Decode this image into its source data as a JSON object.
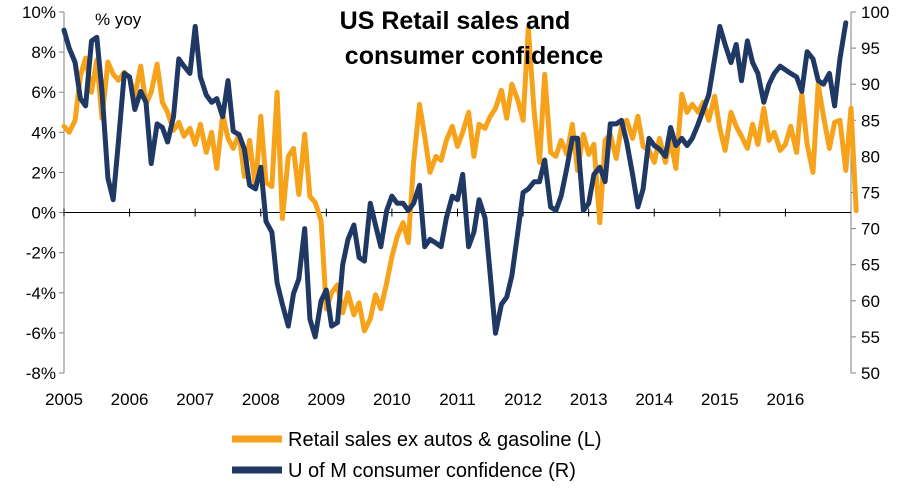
{
  "chart_data": {
    "type": "line",
    "title_lines": [
      "US Retail sales and",
      "consumer confidence"
    ],
    "left_unit_label": "% yoy",
    "x_ticks": [
      "2005",
      "2006",
      "2007",
      "2008",
      "2009",
      "2010",
      "2011",
      "2012",
      "2013",
      "2014",
      "2015",
      "2016"
    ],
    "y_left": {
      "min": -8,
      "max": 10,
      "ticks": [
        "-8%",
        "-6%",
        "-4%",
        "-2%",
        "0%",
        "2%",
        "4%",
        "6%",
        "8%",
        "10%"
      ]
    },
    "y_right": {
      "min": 50,
      "max": 100,
      "ticks": [
        "50",
        "55",
        "60",
        "65",
        "70",
        "75",
        "80",
        "85",
        "90",
        "95",
        "100"
      ]
    },
    "x_range": [
      2005.0,
      2017.0
    ],
    "series": [
      {
        "name": "Retail sales ex autos & gasoline (L)",
        "axis": "left",
        "color": "#F7A21B",
        "points": [
          [
            2005.0,
            4.3
          ],
          [
            2005.08,
            4.0
          ],
          [
            2005.17,
            4.6
          ],
          [
            2005.25,
            6.8
          ],
          [
            2005.33,
            7.7
          ],
          [
            2005.42,
            6.0
          ],
          [
            2005.5,
            7.6
          ],
          [
            2005.58,
            4.7
          ],
          [
            2005.67,
            7.5
          ],
          [
            2005.75,
            6.9
          ],
          [
            2005.83,
            6.6
          ],
          [
            2005.92,
            7.0
          ],
          [
            2006.0,
            6.7
          ],
          [
            2006.08,
            5.8
          ],
          [
            2006.17,
            7.3
          ],
          [
            2006.25,
            5.4
          ],
          [
            2006.33,
            6.0
          ],
          [
            2006.42,
            7.4
          ],
          [
            2006.5,
            5.5
          ],
          [
            2006.58,
            5.0
          ],
          [
            2006.67,
            4.1
          ],
          [
            2006.75,
            4.5
          ],
          [
            2006.83,
            3.8
          ],
          [
            2006.92,
            4.2
          ],
          [
            2007.0,
            3.4
          ],
          [
            2007.08,
            4.4
          ],
          [
            2007.17,
            3.0
          ],
          [
            2007.25,
            4.0
          ],
          [
            2007.33,
            2.2
          ],
          [
            2007.42,
            4.9
          ],
          [
            2007.5,
            3.7
          ],
          [
            2007.58,
            3.2
          ],
          [
            2007.67,
            3.9
          ],
          [
            2007.75,
            1.8
          ],
          [
            2007.83,
            3.6
          ],
          [
            2007.92,
            1.2
          ],
          [
            2008.0,
            4.8
          ],
          [
            2008.08,
            1.5
          ],
          [
            2008.17,
            1.3
          ],
          [
            2008.25,
            6.0
          ],
          [
            2008.33,
            -0.3
          ],
          [
            2008.42,
            2.8
          ],
          [
            2008.5,
            3.2
          ],
          [
            2008.58,
            0.9
          ],
          [
            2008.67,
            3.9
          ],
          [
            2008.75,
            0.8
          ],
          [
            2008.83,
            0.5
          ],
          [
            2008.92,
            -0.4
          ],
          [
            2009.0,
            -4.8
          ],
          [
            2009.08,
            -4.0
          ],
          [
            2009.17,
            -3.6
          ],
          [
            2009.25,
            -5.0
          ],
          [
            2009.33,
            -4.0
          ],
          [
            2009.42,
            -5.1
          ],
          [
            2009.5,
            -4.5
          ],
          [
            2009.58,
            -5.9
          ],
          [
            2009.67,
            -5.3
          ],
          [
            2009.75,
            -4.1
          ],
          [
            2009.83,
            -4.8
          ],
          [
            2009.92,
            -3.5
          ],
          [
            2010.0,
            -2.2
          ],
          [
            2010.08,
            -1.2
          ],
          [
            2010.17,
            -0.5
          ],
          [
            2010.25,
            -1.5
          ],
          [
            2010.33,
            2.5
          ],
          [
            2010.42,
            5.4
          ],
          [
            2010.5,
            3.8
          ],
          [
            2010.58,
            2.0
          ],
          [
            2010.67,
            2.8
          ],
          [
            2010.75,
            2.6
          ],
          [
            2010.83,
            3.6
          ],
          [
            2010.92,
            4.3
          ],
          [
            2011.0,
            3.3
          ],
          [
            2011.08,
            4.0
          ],
          [
            2011.17,
            5.0
          ],
          [
            2011.25,
            2.8
          ],
          [
            2011.33,
            4.4
          ],
          [
            2011.42,
            4.2
          ],
          [
            2011.5,
            4.8
          ],
          [
            2011.58,
            5.2
          ],
          [
            2011.67,
            6.1
          ],
          [
            2011.75,
            4.7
          ],
          [
            2011.83,
            6.4
          ],
          [
            2011.92,
            5.6
          ],
          [
            2012.0,
            4.6
          ],
          [
            2012.08,
            9.2
          ],
          [
            2012.17,
            5.0
          ],
          [
            2012.25,
            2.5
          ],
          [
            2012.33,
            6.9
          ],
          [
            2012.42,
            3.0
          ],
          [
            2012.5,
            2.8
          ],
          [
            2012.58,
            3.6
          ],
          [
            2012.67,
            2.9
          ],
          [
            2012.75,
            4.4
          ],
          [
            2012.83,
            2.1
          ],
          [
            2012.92,
            3.9
          ],
          [
            2013.0,
            2.9
          ],
          [
            2013.08,
            3.4
          ],
          [
            2013.17,
            -0.5
          ],
          [
            2013.25,
            3.6
          ],
          [
            2013.33,
            3.9
          ],
          [
            2013.42,
            2.7
          ],
          [
            2013.5,
            4.3
          ],
          [
            2013.58,
            4.6
          ],
          [
            2013.67,
            3.7
          ],
          [
            2013.75,
            4.8
          ],
          [
            2013.83,
            3.3
          ],
          [
            2013.92,
            3.1
          ],
          [
            2014.0,
            2.5
          ],
          [
            2014.08,
            3.7
          ],
          [
            2014.17,
            2.5
          ],
          [
            2014.25,
            3.6
          ],
          [
            2014.33,
            2.2
          ],
          [
            2014.42,
            5.9
          ],
          [
            2014.5,
            5.0
          ],
          [
            2014.58,
            5.4
          ],
          [
            2014.67,
            5.0
          ],
          [
            2014.75,
            5.5
          ],
          [
            2014.83,
            4.6
          ],
          [
            2014.92,
            5.8
          ],
          [
            2015.0,
            4.2
          ],
          [
            2015.08,
            3.1
          ],
          [
            2015.17,
            5.0
          ],
          [
            2015.25,
            4.3
          ],
          [
            2015.33,
            3.8
          ],
          [
            2015.42,
            3.2
          ],
          [
            2015.5,
            4.4
          ],
          [
            2015.58,
            3.4
          ],
          [
            2015.67,
            5.2
          ],
          [
            2015.75,
            3.6
          ],
          [
            2015.83,
            4.0
          ],
          [
            2015.92,
            3.1
          ],
          [
            2016.0,
            3.4
          ],
          [
            2016.08,
            4.3
          ],
          [
            2016.17,
            3.0
          ],
          [
            2016.25,
            5.9
          ],
          [
            2016.33,
            3.4
          ],
          [
            2016.42,
            2.0
          ],
          [
            2016.5,
            6.4
          ],
          [
            2016.58,
            4.8
          ],
          [
            2016.67,
            3.2
          ],
          [
            2016.75,
            4.5
          ],
          [
            2016.83,
            4.6
          ],
          [
            2016.92,
            2.1
          ],
          [
            2017.0,
            5.2
          ],
          [
            2017.08,
            0.1
          ]
        ]
      },
      {
        "name": "U of M consumer confidence (R)",
        "axis": "right",
        "color": "#1F3864",
        "points": [
          [
            2005.0,
            97.5
          ],
          [
            2005.08,
            95.0
          ],
          [
            2005.17,
            93.0
          ],
          [
            2005.25,
            88.0
          ],
          [
            2005.33,
            87.0
          ],
          [
            2005.42,
            96.0
          ],
          [
            2005.5,
            96.5
          ],
          [
            2005.58,
            89.0
          ],
          [
            2005.67,
            77.0
          ],
          [
            2005.75,
            74.0
          ],
          [
            2005.83,
            82.0
          ],
          [
            2005.92,
            91.5
          ],
          [
            2006.0,
            91.0
          ],
          [
            2006.08,
            86.5
          ],
          [
            2006.17,
            89.0
          ],
          [
            2006.25,
            87.5
          ],
          [
            2006.33,
            79.0
          ],
          [
            2006.42,
            84.5
          ],
          [
            2006.5,
            84.0
          ],
          [
            2006.58,
            82.0
          ],
          [
            2006.67,
            85.5
          ],
          [
            2006.75,
            93.5
          ],
          [
            2006.83,
            92.5
          ],
          [
            2006.92,
            91.5
          ],
          [
            2007.0,
            98.0
          ],
          [
            2007.08,
            91.0
          ],
          [
            2007.17,
            88.5
          ],
          [
            2007.25,
            87.5
          ],
          [
            2007.33,
            88.0
          ],
          [
            2007.42,
            85.5
          ],
          [
            2007.5,
            90.5
          ],
          [
            2007.58,
            83.5
          ],
          [
            2007.67,
            83.0
          ],
          [
            2007.75,
            81.0
          ],
          [
            2007.83,
            76.0
          ],
          [
            2007.92,
            75.5
          ],
          [
            2008.0,
            78.5
          ],
          [
            2008.08,
            71.0
          ],
          [
            2008.17,
            69.5
          ],
          [
            2008.25,
            62.5
          ],
          [
            2008.33,
            59.5
          ],
          [
            2008.42,
            56.5
          ],
          [
            2008.5,
            61.0
          ],
          [
            2008.58,
            63.0
          ],
          [
            2008.67,
            70.0
          ],
          [
            2008.75,
            57.5
          ],
          [
            2008.83,
            55.0
          ],
          [
            2008.92,
            60.0
          ],
          [
            2009.0,
            61.5
          ],
          [
            2009.08,
            56.5
          ],
          [
            2009.17,
            57.0
          ],
          [
            2009.25,
            65.0
          ],
          [
            2009.33,
            68.5
          ],
          [
            2009.42,
            70.5
          ],
          [
            2009.5,
            66.0
          ],
          [
            2009.58,
            65.5
          ],
          [
            2009.67,
            73.5
          ],
          [
            2009.75,
            70.5
          ],
          [
            2009.83,
            67.5
          ],
          [
            2009.92,
            72.5
          ],
          [
            2010.0,
            74.5
          ],
          [
            2010.08,
            73.5
          ],
          [
            2010.17,
            73.5
          ],
          [
            2010.25,
            72.5
          ],
          [
            2010.33,
            73.5
          ],
          [
            2010.42,
            76.0
          ],
          [
            2010.5,
            67.5
          ],
          [
            2010.58,
            68.5
          ],
          [
            2010.67,
            68.0
          ],
          [
            2010.75,
            67.5
          ],
          [
            2010.83,
            71.5
          ],
          [
            2010.92,
            74.5
          ],
          [
            2011.0,
            74.0
          ],
          [
            2011.08,
            77.5
          ],
          [
            2011.17,
            67.5
          ],
          [
            2011.25,
            69.5
          ],
          [
            2011.33,
            74.0
          ],
          [
            2011.42,
            71.5
          ],
          [
            2011.5,
            63.5
          ],
          [
            2011.58,
            55.5
          ],
          [
            2011.67,
            59.5
          ],
          [
            2011.75,
            60.5
          ],
          [
            2011.83,
            63.5
          ],
          [
            2011.92,
            69.5
          ],
          [
            2012.0,
            75.0
          ],
          [
            2012.08,
            75.5
          ],
          [
            2012.17,
            76.5
          ],
          [
            2012.25,
            76.5
          ],
          [
            2012.33,
            79.5
          ],
          [
            2012.42,
            73.0
          ],
          [
            2012.5,
            72.5
          ],
          [
            2012.58,
            74.5
          ],
          [
            2012.67,
            78.5
          ],
          [
            2012.75,
            82.5
          ],
          [
            2012.83,
            82.5
          ],
          [
            2012.92,
            72.5
          ],
          [
            2013.0,
            73.5
          ],
          [
            2013.08,
            77.5
          ],
          [
            2013.17,
            78.5
          ],
          [
            2013.25,
            76.5
          ],
          [
            2013.33,
            84.5
          ],
          [
            2013.42,
            84.5
          ],
          [
            2013.5,
            85.0
          ],
          [
            2013.58,
            82.0
          ],
          [
            2013.67,
            77.5
          ],
          [
            2013.75,
            73.0
          ],
          [
            2013.83,
            75.5
          ],
          [
            2013.92,
            82.5
          ],
          [
            2014.0,
            81.5
          ],
          [
            2014.08,
            81.0
          ],
          [
            2014.17,
            80.0
          ],
          [
            2014.25,
            84.0
          ],
          [
            2014.33,
            81.5
          ],
          [
            2014.42,
            82.5
          ],
          [
            2014.5,
            81.5
          ],
          [
            2014.58,
            82.5
          ],
          [
            2014.67,
            84.5
          ],
          [
            2014.75,
            86.5
          ],
          [
            2014.83,
            88.5
          ],
          [
            2014.92,
            93.5
          ],
          [
            2015.0,
            98.0
          ],
          [
            2015.08,
            95.5
          ],
          [
            2015.17,
            93.0
          ],
          [
            2015.25,
            95.5
          ],
          [
            2015.33,
            90.5
          ],
          [
            2015.42,
            96.0
          ],
          [
            2015.5,
            93.0
          ],
          [
            2015.58,
            91.5
          ],
          [
            2015.67,
            87.5
          ],
          [
            2015.75,
            90.0
          ],
          [
            2015.83,
            91.5
          ],
          [
            2015.92,
            92.5
          ],
          [
            2016.0,
            92.0
          ],
          [
            2016.08,
            91.5
          ],
          [
            2016.17,
            91.0
          ],
          [
            2016.25,
            89.0
          ],
          [
            2016.33,
            94.5
          ],
          [
            2016.42,
            93.5
          ],
          [
            2016.5,
            90.5
          ],
          [
            2016.58,
            90.0
          ],
          [
            2016.67,
            91.5
          ],
          [
            2016.75,
            87.0
          ],
          [
            2016.83,
            93.5
          ],
          [
            2016.92,
            98.5
          ]
        ]
      }
    ]
  }
}
